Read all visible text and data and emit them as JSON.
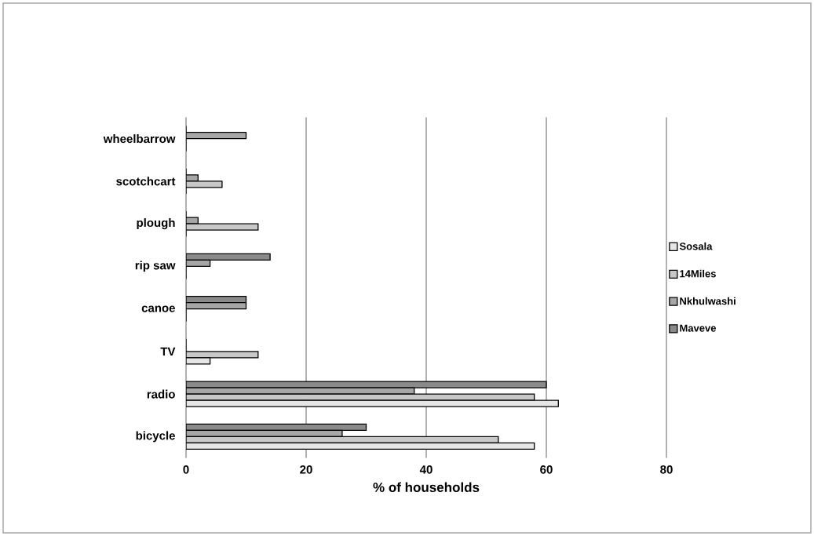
{
  "chart_data": {
    "type": "bar",
    "orientation": "horizontal",
    "xlabel": "% of households",
    "categories": [
      "wheelbarrow",
      "scotchcart",
      "plough",
      "rip saw",
      "canoe",
      "TV",
      "radio",
      "bicycle"
    ],
    "series": [
      {
        "name": "Sosala",
        "color": "#e6e6e6",
        "values": [
          0,
          0,
          0,
          0,
          0,
          4,
          62,
          58
        ]
      },
      {
        "name": "14Miles",
        "color": "#c8c8c8",
        "values": [
          0,
          6,
          12,
          0,
          0,
          12,
          58,
          52
        ]
      },
      {
        "name": "Nkhulwashi",
        "color": "#a6a6a6",
        "values": [
          10,
          2,
          2,
          4,
          10,
          0,
          38,
          26
        ]
      },
      {
        "name": "Maveve",
        "color": "#8a8a8a",
        "values": [
          0,
          0,
          0,
          14,
          10,
          0,
          60,
          30
        ]
      }
    ],
    "xlim": [
      0,
      80
    ],
    "xticks": [
      0,
      20,
      40,
      60,
      80
    ],
    "grid": "x",
    "legend": "right"
  }
}
